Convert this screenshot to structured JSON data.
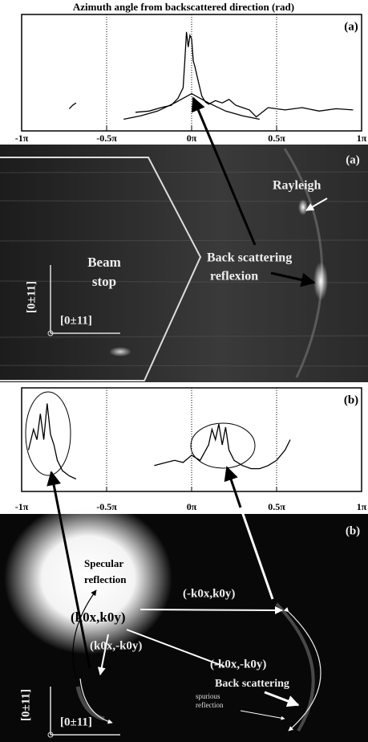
{
  "title": "Azimuth angle from backscattered direction (rad)",
  "chart_data": [
    {
      "type": "line",
      "panel_label": "(a)",
      "xlim": [
        -1,
        1
      ],
      "xticks": [
        {
          "value": -1,
          "label": "-1π"
        },
        {
          "value": -0.5,
          "label": "-0.5π"
        },
        {
          "value": 0,
          "label": "0π"
        },
        {
          "value": 0.5,
          "label": "0.5π"
        },
        {
          "value": 1,
          "label": "1π"
        }
      ],
      "ylim": [
        0,
        1
      ],
      "series": [
        {
          "color": "#000000",
          "x": [
            -0.72,
            -0.7,
            -0.68,
            null,
            -0.33,
            -0.25,
            -0.18,
            -0.12,
            -0.08,
            -0.05,
            -0.04,
            -0.03,
            -0.02,
            -0.01,
            0,
            0.01,
            0.02,
            0.04,
            0.06,
            0.08,
            0.1,
            0.14,
            0.18,
            0.22,
            0.26,
            0.3,
            0.34,
            0.38,
            0.45,
            0.55,
            0.65,
            0.75,
            0.85,
            0.95
          ],
          "values": [
            0.19,
            0.22,
            0.24,
            null,
            0.16,
            0.17,
            0.2,
            0.22,
            0.28,
            0.37,
            0.6,
            0.85,
            0.72,
            0.82,
            0.79,
            0.6,
            0.55,
            0.42,
            0.3,
            0.25,
            0.23,
            0.26,
            0.24,
            0.27,
            0.22,
            0.2,
            0.18,
            0.12,
            0.2,
            0.18,
            0.2,
            0.17,
            0.19,
            0.18
          ]
        },
        {
          "color": "#000000",
          "x": [
            -0.4,
            -0.3,
            -0.2,
            -0.1,
            -0.05,
            0,
            0.05,
            0.1,
            0.2,
            0.3,
            0.4
          ],
          "values": [
            0.1,
            0.13,
            0.17,
            0.24,
            0.28,
            0.32,
            0.28,
            0.24,
            0.17,
            0.13,
            0.1
          ]
        }
      ]
    },
    {
      "type": "line",
      "panel_label": "(b)",
      "xlim": [
        -1,
        1
      ],
      "xticks": [
        {
          "value": -1,
          "label": "-1π"
        },
        {
          "value": -0.5,
          "label": "-0.5π"
        },
        {
          "value": 0,
          "label": "0π"
        },
        {
          "value": 0.5,
          "label": "0.5π"
        },
        {
          "value": 1,
          "label": "1π"
        }
      ],
      "ylim": [
        0,
        1
      ],
      "series": [
        {
          "color": "#000000",
          "x": [
            -0.96,
            -0.93,
            -0.91,
            -0.89,
            -0.87,
            -0.85,
            -0.83,
            -0.81,
            -0.79,
            -0.76,
            -0.72,
            -0.68,
            null,
            -0.22,
            -0.15,
            -0.1,
            -0.05,
            0,
            0.05,
            0.1,
            0.12,
            0.14,
            0.16,
            0.18,
            0.2,
            0.22,
            0.25,
            0.3,
            0.35,
            0.4,
            0.45,
            0.5,
            0.55,
            0.58
          ],
          "values": [
            0.4,
            0.6,
            0.5,
            0.75,
            0.5,
            0.85,
            0.55,
            0.45,
            0.3,
            0.2,
            0.15,
            0.12,
            null,
            0.25,
            0.28,
            0.3,
            0.28,
            0.35,
            0.3,
            0.45,
            0.6,
            0.5,
            0.65,
            0.45,
            0.62,
            0.4,
            0.3,
            0.25,
            0.22,
            0.22,
            0.25,
            0.3,
            0.4,
            0.5
          ]
        }
      ]
    }
  ],
  "images": [
    {
      "panel_label": "(a)",
      "rayleigh": "Rayleigh",
      "beam_stop": [
        "Beam",
        "stop"
      ],
      "back_scattering": [
        "Back scattering",
        "reflexion"
      ],
      "axis_vertical": "[0±11]",
      "axis_horizontal": "[0±11]"
    },
    {
      "panel_label": "(b)",
      "specular": [
        "Specular",
        "reflection"
      ],
      "k1": "(k0x,k0y)",
      "k2": "(-k0x,k0y)",
      "k3": "(k0x,-k0y)",
      "k4": "(-k0x,-k0y)",
      "back_scattering": "Back scattering",
      "spurious": [
        "spurious",
        "reflection"
      ],
      "axis_vertical": "[0±11]",
      "axis_horizontal": "[0±11]"
    }
  ]
}
